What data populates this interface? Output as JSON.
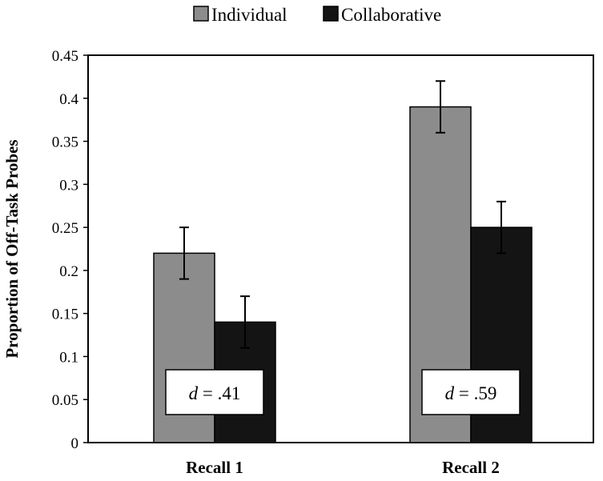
{
  "chart_data": {
    "type": "bar",
    "title": "",
    "xlabel": "",
    "ylabel": "Proportion of Off-Task Probes",
    "categories": [
      "Recall 1",
      "Recall 2"
    ],
    "ylim": [
      0,
      0.45
    ],
    "yticks": [
      "0",
      "0.05",
      "0.1",
      "0.15",
      "0.2",
      "0.25",
      "0.3",
      "0.35",
      "0.4",
      "0.45"
    ],
    "grid": false,
    "legend_position": "top-center",
    "series": [
      {
        "name": "Individual",
        "color": "#8c8c8c",
        "values": [
          0.22,
          0.39
        ],
        "errors": [
          0.03,
          0.03
        ]
      },
      {
        "name": "Collaborative",
        "color": "#141414",
        "values": [
          0.14,
          0.25
        ],
        "errors": [
          0.03,
          0.03
        ]
      }
    ],
    "annotations": [
      {
        "category": "Recall 1",
        "italic": "d",
        "text": " = .41"
      },
      {
        "category": "Recall 2",
        "italic": "d",
        "text": " = .59"
      }
    ]
  }
}
